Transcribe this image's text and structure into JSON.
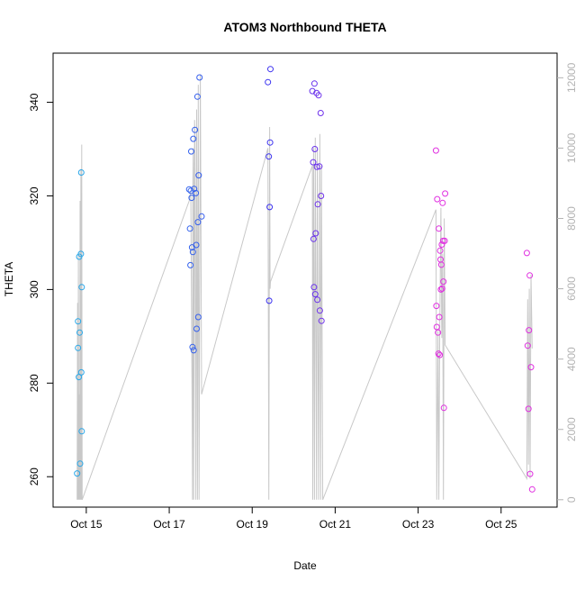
{
  "chart_data": {
    "type": "scatter",
    "title": "ATOM3 Northbound THETA",
    "xlabel": "Date",
    "ylabel": "THETA",
    "x_ticks": [
      "Oct 15",
      "Oct 17",
      "Oct 19",
      "Oct 21",
      "Oct 23",
      "Oct 25"
    ],
    "y_ticks": [
      260,
      280,
      300,
      320,
      340
    ],
    "y2_ticks": [
      0,
      2000,
      4000,
      6000,
      8000,
      10000,
      12000
    ],
    "xlim": [
      14.2,
      26.35
    ],
    "ylim": [
      253.5,
      350.5
    ],
    "y2lim": [
      -210,
      12700
    ],
    "grid": false,
    "legend": "none",
    "colors": {
      "points_start": "#29a8e8",
      "points_mid": "#3b32f0",
      "points_end": "#e030e0",
      "line": "#c8c8c8"
    },
    "series": [
      {
        "values": [
          [
            14.78,
            260.7
          ],
          [
            14.8,
            287.5
          ],
          [
            14.8,
            293.2
          ],
          [
            14.82,
            281.3
          ],
          [
            14.83,
            307.0
          ],
          [
            14.84,
            290.8
          ],
          [
            14.85,
            262.8
          ],
          [
            14.87,
            307.6
          ],
          [
            14.88,
            282.3
          ],
          [
            14.89,
            300.5
          ],
          [
            14.88,
            325.0
          ],
          [
            14.89,
            269.7
          ],
          [
            17.48,
            321.4
          ],
          [
            17.5,
            313.0
          ],
          [
            17.51,
            305.2
          ],
          [
            17.52,
            321.1
          ],
          [
            17.53,
            329.5
          ],
          [
            17.54,
            319.6
          ],
          [
            17.55,
            309.0
          ],
          [
            17.56,
            287.7
          ],
          [
            17.57,
            308.0
          ],
          [
            17.58,
            332.2
          ],
          [
            17.59,
            287.0
          ],
          [
            17.6,
            321.5
          ],
          [
            17.62,
            334.1
          ],
          [
            17.64,
            320.6
          ],
          [
            17.65,
            309.5
          ],
          [
            17.66,
            291.6
          ],
          [
            17.68,
            341.2
          ],
          [
            17.69,
            314.4
          ],
          [
            17.7,
            294.1
          ],
          [
            17.71,
            324.4
          ],
          [
            17.73,
            345.3
          ],
          [
            17.78,
            315.6
          ],
          [
            19.38,
            344.3
          ],
          [
            19.4,
            328.4
          ],
          [
            19.41,
            297.6
          ],
          [
            19.42,
            317.6
          ],
          [
            19.43,
            331.4
          ],
          [
            19.44,
            347.1
          ],
          [
            20.45,
            342.4
          ],
          [
            20.47,
            327.2
          ],
          [
            20.48,
            310.8
          ],
          [
            20.49,
            300.5
          ],
          [
            20.5,
            344.0
          ],
          [
            20.51,
            330.0
          ],
          [
            20.52,
            299.0
          ],
          [
            20.53,
            312.0
          ],
          [
            20.55,
            342.0
          ],
          [
            20.56,
            326.2
          ],
          [
            20.57,
            297.8
          ],
          [
            20.58,
            318.2
          ],
          [
            20.6,
            341.5
          ],
          [
            20.62,
            326.3
          ],
          [
            20.63,
            295.5
          ],
          [
            20.65,
            337.7
          ],
          [
            20.66,
            320.0
          ],
          [
            20.67,
            293.3
          ],
          [
            23.43,
            329.7
          ],
          [
            23.44,
            296.5
          ],
          [
            23.45,
            292.0
          ],
          [
            23.46,
            319.3
          ],
          [
            23.48,
            290.8
          ],
          [
            23.49,
            286.3
          ],
          [
            23.5,
            313.0
          ],
          [
            23.51,
            294.1
          ],
          [
            23.52,
            286.0
          ],
          [
            23.53,
            308.3
          ],
          [
            23.54,
            306.4
          ],
          [
            23.55,
            300.0
          ],
          [
            23.56,
            305.3
          ],
          [
            23.57,
            309.6
          ],
          [
            23.58,
            300.2
          ],
          [
            23.59,
            318.5
          ],
          [
            23.6,
            310.4
          ],
          [
            23.61,
            301.7
          ],
          [
            23.62,
            274.7
          ],
          [
            23.64,
            310.4
          ],
          [
            23.65,
            320.5
          ],
          [
            25.62,
            307.8
          ],
          [
            25.64,
            288.0
          ],
          [
            25.66,
            274.5
          ],
          [
            25.67,
            291.3
          ],
          [
            25.69,
            303.0
          ],
          [
            25.7,
            260.6
          ],
          [
            25.72,
            283.4
          ],
          [
            25.75,
            257.3
          ]
        ]
      }
    ],
    "line_series": [
      {
        "axis": "right",
        "values": [
          [
            14.78,
            0
          ],
          [
            14.79,
            5600
          ],
          [
            14.8,
            0
          ],
          [
            14.81,
            7000
          ],
          [
            14.82,
            0
          ],
          [
            14.83,
            3000
          ],
          [
            14.84,
            0
          ],
          [
            14.85,
            8500
          ],
          [
            14.86,
            0
          ],
          [
            14.87,
            9400
          ],
          [
            14.88,
            0
          ],
          [
            14.89,
            10100
          ],
          [
            14.9,
            0
          ],
          [
            17.48,
            8500
          ],
          [
            17.52,
            8800
          ],
          [
            17.55,
            3000
          ],
          [
            17.56,
            0
          ],
          [
            17.57,
            8900
          ],
          [
            17.58,
            10000
          ],
          [
            17.59,
            0
          ],
          [
            17.61,
            10800
          ],
          [
            17.62,
            10400
          ],
          [
            17.64,
            0
          ],
          [
            17.66,
            11100
          ],
          [
            17.68,
            0
          ],
          [
            17.7,
            11800
          ],
          [
            17.72,
            0
          ],
          [
            17.75,
            12100
          ],
          [
            17.78,
            3000
          ],
          [
            19.38,
            10000
          ],
          [
            19.4,
            0
          ],
          [
            19.42,
            10600
          ],
          [
            19.43,
            6000
          ],
          [
            19.44,
            6200
          ],
          [
            20.45,
            9500
          ],
          [
            20.46,
            0
          ],
          [
            20.48,
            10000
          ],
          [
            20.5,
            0
          ],
          [
            20.52,
            10300
          ],
          [
            20.55,
            0
          ],
          [
            20.57,
            10000
          ],
          [
            20.6,
            0
          ],
          [
            20.63,
            10400
          ],
          [
            20.65,
            0
          ],
          [
            20.67,
            9500
          ],
          [
            20.7,
            0
          ],
          [
            23.43,
            8250
          ],
          [
            23.45,
            0
          ],
          [
            23.48,
            4800
          ],
          [
            23.5,
            0
          ],
          [
            23.52,
            4800
          ],
          [
            23.55,
            8300
          ],
          [
            23.57,
            4600
          ],
          [
            23.59,
            7000
          ],
          [
            23.61,
            0
          ],
          [
            23.63,
            8000
          ],
          [
            23.65,
            4400
          ],
          [
            25.62,
            600
          ],
          [
            25.64,
            5700
          ],
          [
            25.66,
            1000
          ],
          [
            25.68,
            6000
          ],
          [
            25.7,
            600
          ],
          [
            25.72,
            6400
          ],
          [
            25.75,
            4300
          ]
        ]
      }
    ]
  }
}
